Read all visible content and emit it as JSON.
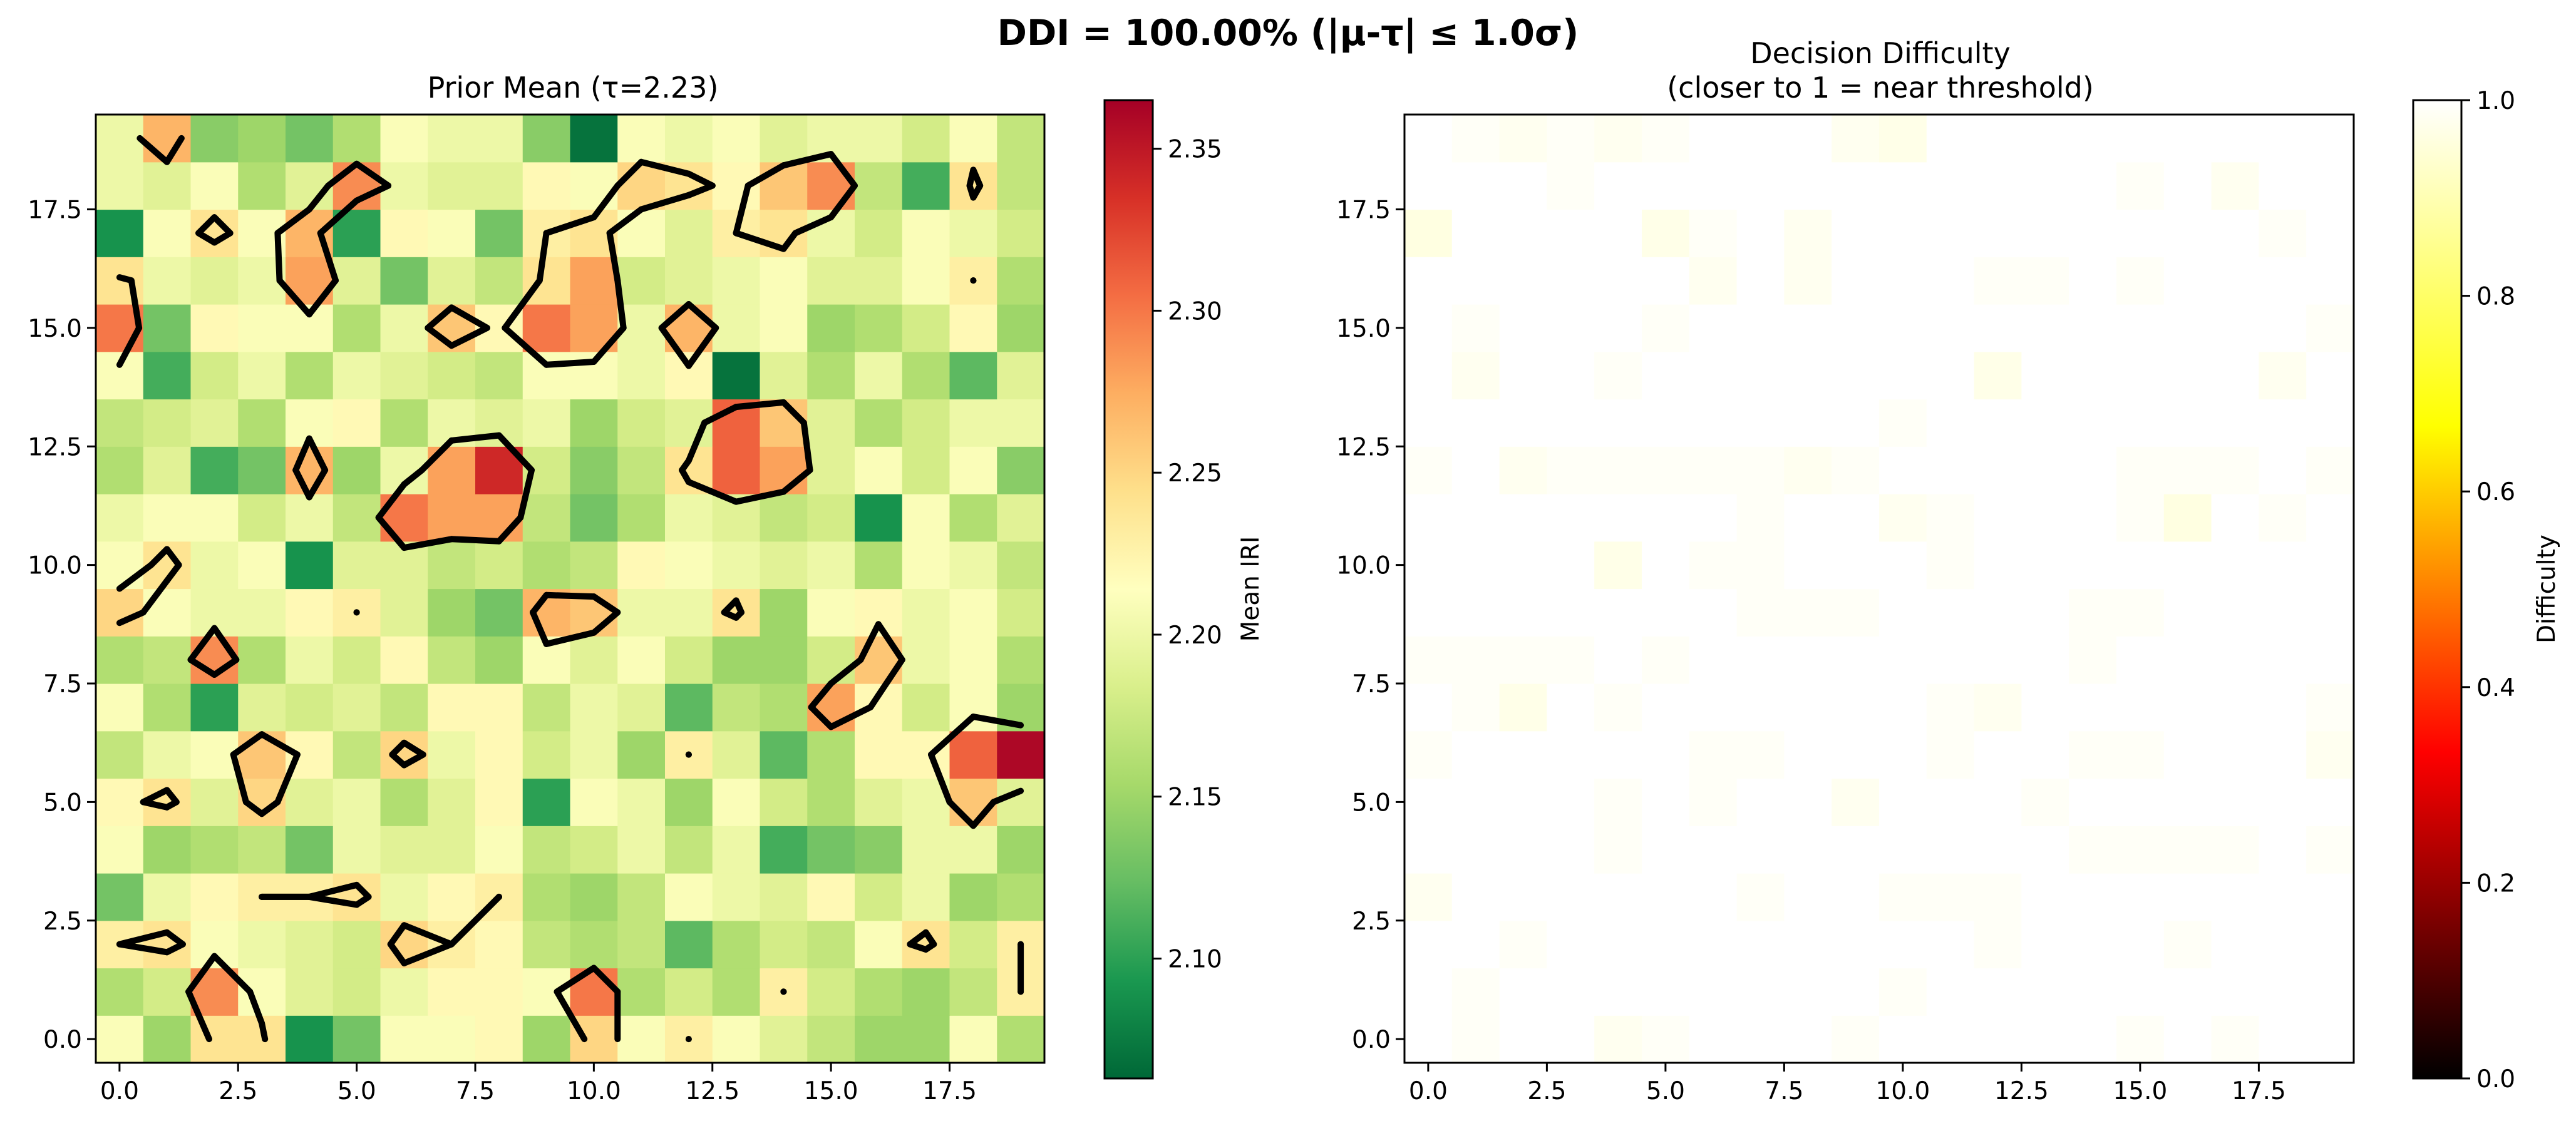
{
  "figure": {
    "suptitle": "DDI = 100.00% (|μ-τ| ≤ 1.0σ)"
  },
  "chart_data": [
    {
      "type": "heatmap",
      "title": "Prior Mean (τ=2.23)",
      "threshold": 2.23,
      "grid_size": [
        20,
        20
      ],
      "xlim": [
        -0.5,
        19.5
      ],
      "ylim": [
        -0.5,
        19.5
      ],
      "xticks": [
        "0.0",
        "2.5",
        "5.0",
        "7.5",
        "10.0",
        "12.5",
        "15.0",
        "17.5"
      ],
      "xtick_values": [
        0,
        2.5,
        5,
        7.5,
        10,
        12.5,
        15,
        17.5
      ],
      "yticks": [
        "0.0",
        "2.5",
        "5.0",
        "7.5",
        "10.0",
        "12.5",
        "15.0",
        "17.5"
      ],
      "ytick_values": [
        0,
        2.5,
        5,
        7.5,
        10,
        12.5,
        15,
        17.5
      ],
      "colormap": "RdYlGn_r",
      "colormap_stops": [
        "#006837",
        "#1a9850",
        "#66bd63",
        "#a6d96a",
        "#d9ef8b",
        "#ffffbf",
        "#fee08b",
        "#fdae61",
        "#f46d43",
        "#d73027",
        "#a50026"
      ],
      "vmin": 2.063,
      "vmax": 2.365,
      "colorbar": {
        "label": "Mean IRI",
        "ticks": [
          "2.10",
          "2.15",
          "2.20",
          "2.25",
          "2.30",
          "2.35"
        ],
        "tick_values": [
          2.1,
          2.15,
          2.2,
          2.25,
          2.3,
          2.35
        ]
      },
      "contour_level": 2.23,
      "contour_color": "#000000",
      "values": [
        [
          2.21,
          2.15,
          2.24,
          2.24,
          2.09,
          2.13,
          2.21,
          2.21,
          2.22,
          2.15,
          2.25,
          2.21,
          2.23,
          2.21,
          2.19,
          2.17,
          2.15,
          2.15,
          2.21,
          2.16
        ],
        [
          2.16,
          2.18,
          2.29,
          2.21,
          2.19,
          2.18,
          2.2,
          2.22,
          2.22,
          2.21,
          2.3,
          2.16,
          2.18,
          2.16,
          2.23,
          2.18,
          2.16,
          2.15,
          2.17,
          2.23
        ],
        [
          2.23,
          2.24,
          2.21,
          2.2,
          2.19,
          2.18,
          2.25,
          2.23,
          2.22,
          2.17,
          2.16,
          2.17,
          2.12,
          2.16,
          2.18,
          2.17,
          2.21,
          2.24,
          2.18,
          2.23
        ],
        [
          2.13,
          2.2,
          2.22,
          2.23,
          2.23,
          2.24,
          2.2,
          2.22,
          2.23,
          2.16,
          2.15,
          2.17,
          2.21,
          2.2,
          2.19,
          2.22,
          2.18,
          2.2,
          2.15,
          2.16
        ],
        [
          2.21,
          2.15,
          2.16,
          2.17,
          2.13,
          2.2,
          2.19,
          2.19,
          2.21,
          2.17,
          2.18,
          2.2,
          2.17,
          2.2,
          2.11,
          2.13,
          2.14,
          2.2,
          2.2,
          2.15
        ],
        [
          2.22,
          2.24,
          2.19,
          2.25,
          2.19,
          2.2,
          2.16,
          2.19,
          2.22,
          2.1,
          2.21,
          2.2,
          2.15,
          2.21,
          2.18,
          2.16,
          2.19,
          2.2,
          2.26,
          2.19
        ],
        [
          2.17,
          2.2,
          2.21,
          2.26,
          2.22,
          2.17,
          2.25,
          2.2,
          2.22,
          2.18,
          2.2,
          2.15,
          2.23,
          2.19,
          2.12,
          2.16,
          2.22,
          2.22,
          2.31,
          2.36
        ],
        [
          2.21,
          2.16,
          2.1,
          2.19,
          2.18,
          2.19,
          2.17,
          2.22,
          2.22,
          2.17,
          2.2,
          2.19,
          2.12,
          2.17,
          2.16,
          2.28,
          2.22,
          2.18,
          2.21,
          2.15
        ],
        [
          2.16,
          2.17,
          2.29,
          2.16,
          2.2,
          2.18,
          2.22,
          2.17,
          2.15,
          2.21,
          2.19,
          2.21,
          2.18,
          2.15,
          2.15,
          2.18,
          2.26,
          2.2,
          2.21,
          2.16
        ],
        [
          2.25,
          2.21,
          2.2,
          2.2,
          2.22,
          2.23,
          2.19,
          2.15,
          2.13,
          2.27,
          2.26,
          2.2,
          2.2,
          2.24,
          2.15,
          2.21,
          2.22,
          2.2,
          2.21,
          2.18
        ],
        [
          2.21,
          2.24,
          2.2,
          2.21,
          2.09,
          2.19,
          2.19,
          2.17,
          2.18,
          2.16,
          2.17,
          2.22,
          2.21,
          2.2,
          2.19,
          2.2,
          2.16,
          2.21,
          2.2,
          2.17
        ],
        [
          2.2,
          2.21,
          2.21,
          2.18,
          2.2,
          2.17,
          2.3,
          2.28,
          2.28,
          2.17,
          2.13,
          2.16,
          2.2,
          2.19,
          2.17,
          2.18,
          2.09,
          2.21,
          2.16,
          2.19
        ],
        [
          2.16,
          2.19,
          2.11,
          2.13,
          2.27,
          2.15,
          2.2,
          2.28,
          2.34,
          2.18,
          2.14,
          2.17,
          2.24,
          2.31,
          2.28,
          2.19,
          2.21,
          2.18,
          2.21,
          2.14
        ],
        [
          2.17,
          2.18,
          2.19,
          2.16,
          2.21,
          2.22,
          2.16,
          2.2,
          2.19,
          2.2,
          2.15,
          2.18,
          2.19,
          2.31,
          2.26,
          2.19,
          2.16,
          2.18,
          2.2,
          2.2
        ],
        [
          2.21,
          2.11,
          2.18,
          2.2,
          2.16,
          2.2,
          2.19,
          2.18,
          2.17,
          2.21,
          2.21,
          2.2,
          2.22,
          2.07,
          2.19,
          2.16,
          2.2,
          2.16,
          2.12,
          2.19
        ],
        [
          2.3,
          2.13,
          2.22,
          2.21,
          2.21,
          2.16,
          2.2,
          2.26,
          2.22,
          2.3,
          2.28,
          2.2,
          2.27,
          2.2,
          2.21,
          2.15,
          2.16,
          2.18,
          2.22,
          2.15
        ],
        [
          2.24,
          2.2,
          2.19,
          2.2,
          2.28,
          2.19,
          2.13,
          2.19,
          2.17,
          2.24,
          2.28,
          2.18,
          2.19,
          2.2,
          2.21,
          2.19,
          2.19,
          2.21,
          2.23,
          2.16
        ],
        [
          2.09,
          2.21,
          2.24,
          2.21,
          2.27,
          2.1,
          2.22,
          2.21,
          2.13,
          2.23,
          2.24,
          2.21,
          2.19,
          2.23,
          2.24,
          2.2,
          2.18,
          2.21,
          2.2,
          2.18
        ],
        [
          2.2,
          2.19,
          2.21,
          2.16,
          2.19,
          2.29,
          2.2,
          2.19,
          2.19,
          2.22,
          2.21,
          2.25,
          2.24,
          2.22,
          2.26,
          2.29,
          2.17,
          2.11,
          2.24,
          2.17
        ],
        [
          2.2,
          2.27,
          2.14,
          2.15,
          2.13,
          2.16,
          2.21,
          2.2,
          2.2,
          2.14,
          2.07,
          2.21,
          2.2,
          2.21,
          2.19,
          2.2,
          2.2,
          2.18,
          2.21,
          2.17
        ]
      ]
    },
    {
      "type": "heatmap",
      "title": "Decision Difficulty",
      "subtitle": "(closer to 1 = near threshold)",
      "grid_size": [
        20,
        20
      ],
      "xlim": [
        -0.5,
        19.5
      ],
      "ylim": [
        -0.5,
        19.5
      ],
      "xticks": [
        "0.0",
        "2.5",
        "5.0",
        "7.5",
        "10.0",
        "12.5",
        "15.0",
        "17.5"
      ],
      "xtick_values": [
        0,
        2.5,
        5,
        7.5,
        10,
        12.5,
        15,
        17.5
      ],
      "yticks": [
        "0.0",
        "2.5",
        "5.0",
        "7.5",
        "10.0",
        "12.5",
        "15.0",
        "17.5"
      ],
      "ytick_values": [
        0,
        2.5,
        5,
        7.5,
        10,
        12.5,
        15,
        17.5
      ],
      "colormap": "hot",
      "colormap_stops": [
        "#000000",
        "#800000",
        "#ff0000",
        "#ff8000",
        "#ffff00",
        "#ffff80",
        "#ffffff"
      ],
      "vmin": 0.0,
      "vmax": 1.0,
      "colorbar": {
        "label": "Difficulty",
        "ticks": [
          "0.0",
          "0.2",
          "0.4",
          "0.6",
          "0.8",
          "1.0"
        ],
        "tick_values": [
          0,
          0.2,
          0.4,
          0.6,
          0.8,
          1.0
        ]
      },
      "values": [
        [
          1.0,
          0.99,
          1.0,
          1.0,
          0.98,
          0.99,
          1.0,
          1.0,
          1.0,
          0.99,
          1.0,
          1.0,
          1.0,
          1.0,
          1.0,
          0.99,
          1.0,
          0.99,
          1.0,
          1.0
        ],
        [
          1.0,
          0.99,
          1.0,
          1.0,
          1.0,
          1.0,
          1.0,
          1.0,
          1.0,
          1.0,
          0.99,
          1.0,
          1.0,
          1.0,
          1.0,
          1.0,
          1.0,
          1.0,
          1.0,
          1.0
        ],
        [
          1.0,
          1.0,
          0.99,
          1.0,
          1.0,
          1.0,
          1.0,
          1.0,
          1.0,
          1.0,
          1.0,
          1.0,
          0.99,
          1.0,
          1.0,
          1.0,
          0.99,
          1.0,
          1.0,
          1.0
        ],
        [
          0.98,
          1.0,
          1.0,
          1.0,
          1.0,
          1.0,
          1.0,
          0.99,
          1.0,
          1.0,
          0.99,
          0.99,
          0.99,
          1.0,
          1.0,
          1.0,
          1.0,
          1.0,
          1.0,
          1.0
        ],
        [
          1.0,
          1.0,
          1.0,
          1.0,
          0.99,
          1.0,
          1.0,
          1.0,
          1.0,
          1.0,
          1.0,
          1.0,
          1.0,
          1.0,
          0.99,
          0.99,
          0.99,
          0.99,
          1.0,
          0.99
        ],
        [
          1.0,
          1.0,
          1.0,
          1.0,
          0.99,
          1.0,
          0.99,
          1.0,
          1.0,
          0.98,
          1.0,
          1.0,
          1.0,
          0.99,
          1.0,
          1.0,
          1.0,
          1.0,
          1.0,
          1.0
        ],
        [
          0.99,
          1.0,
          1.0,
          1.0,
          1.0,
          1.0,
          0.99,
          0.99,
          1.0,
          1.0,
          1.0,
          0.99,
          1.0,
          1.0,
          0.99,
          0.99,
          1.0,
          1.0,
          1.0,
          0.98
        ],
        [
          1.0,
          0.99,
          0.97,
          1.0,
          0.99,
          1.0,
          1.0,
          1.0,
          1.0,
          1.0,
          1.0,
          0.99,
          0.98,
          1.0,
          1.0,
          1.0,
          1.0,
          1.0,
          1.0,
          0.99
        ],
        [
          0.99,
          0.99,
          0.99,
          0.99,
          1.0,
          0.99,
          1.0,
          1.0,
          1.0,
          1.0,
          1.0,
          1.0,
          1.0,
          1.0,
          0.99,
          1.0,
          1.0,
          1.0,
          1.0,
          1.0
        ],
        [
          1.0,
          1.0,
          1.0,
          1.0,
          1.0,
          1.0,
          1.0,
          0.99,
          0.99,
          0.99,
          1.0,
          1.0,
          1.0,
          1.0,
          0.99,
          0.99,
          1.0,
          1.0,
          1.0,
          1.0
        ],
        [
          1.0,
          1.0,
          1.0,
          1.0,
          0.97,
          1.0,
          0.99,
          0.99,
          1.0,
          1.0,
          1.0,
          0.99,
          1.0,
          1.0,
          1.0,
          1.0,
          1.0,
          1.0,
          1.0,
          1.0
        ],
        [
          1.0,
          1.0,
          1.0,
          1.0,
          1.0,
          1.0,
          1.0,
          0.99,
          1.0,
          1.0,
          0.98,
          0.99,
          1.0,
          1.0,
          1.0,
          0.99,
          0.96,
          1.0,
          0.99,
          1.0
        ],
        [
          0.99,
          1.0,
          0.98,
          0.99,
          0.99,
          0.99,
          0.99,
          0.99,
          0.98,
          0.99,
          1.0,
          1.0,
          1.0,
          1.0,
          1.0,
          0.99,
          0.99,
          0.99,
          1.0,
          0.99
        ],
        [
          1.0,
          1.0,
          1.0,
          1.0,
          1.0,
          1.0,
          1.0,
          1.0,
          1.0,
          1.0,
          0.99,
          1.0,
          1.0,
          1.0,
          1.0,
          1.0,
          1.0,
          1.0,
          1.0,
          1.0
        ],
        [
          1.0,
          0.98,
          1.0,
          1.0,
          0.99,
          1.0,
          1.0,
          1.0,
          1.0,
          1.0,
          1.0,
          1.0,
          0.97,
          1.0,
          1.0,
          1.0,
          1.0,
          1.0,
          0.98,
          1.0
        ],
        [
          1.0,
          0.99,
          1.0,
          1.0,
          1.0,
          0.99,
          1.0,
          1.0,
          1.0,
          1.0,
          1.0,
          1.0,
          1.0,
          1.0,
          1.0,
          1.0,
          1.0,
          1.0,
          1.0,
          0.99
        ],
        [
          1.0,
          1.0,
          1.0,
          1.0,
          1.0,
          1.0,
          0.98,
          1.0,
          0.98,
          1.0,
          1.0,
          1.0,
          0.99,
          0.99,
          1.0,
          0.99,
          1.0,
          1.0,
          1.0,
          1.0
        ],
        [
          0.96,
          1.0,
          1.0,
          1.0,
          1.0,
          0.97,
          0.99,
          1.0,
          0.98,
          1.0,
          1.0,
          1.0,
          1.0,
          1.0,
          1.0,
          1.0,
          1.0,
          1.0,
          0.99,
          1.0
        ],
        [
          1.0,
          1.0,
          1.0,
          0.99,
          1.0,
          1.0,
          1.0,
          1.0,
          1.0,
          1.0,
          1.0,
          1.0,
          1.0,
          1.0,
          1.0,
          0.99,
          1.0,
          0.98,
          1.0,
          1.0
        ],
        [
          1.0,
          0.99,
          0.98,
          0.99,
          0.98,
          0.99,
          1.0,
          1.0,
          1.0,
          0.98,
          0.97,
          1.0,
          1.0,
          1.0,
          1.0,
          1.0,
          1.0,
          1.0,
          1.0,
          1.0
        ]
      ]
    }
  ]
}
